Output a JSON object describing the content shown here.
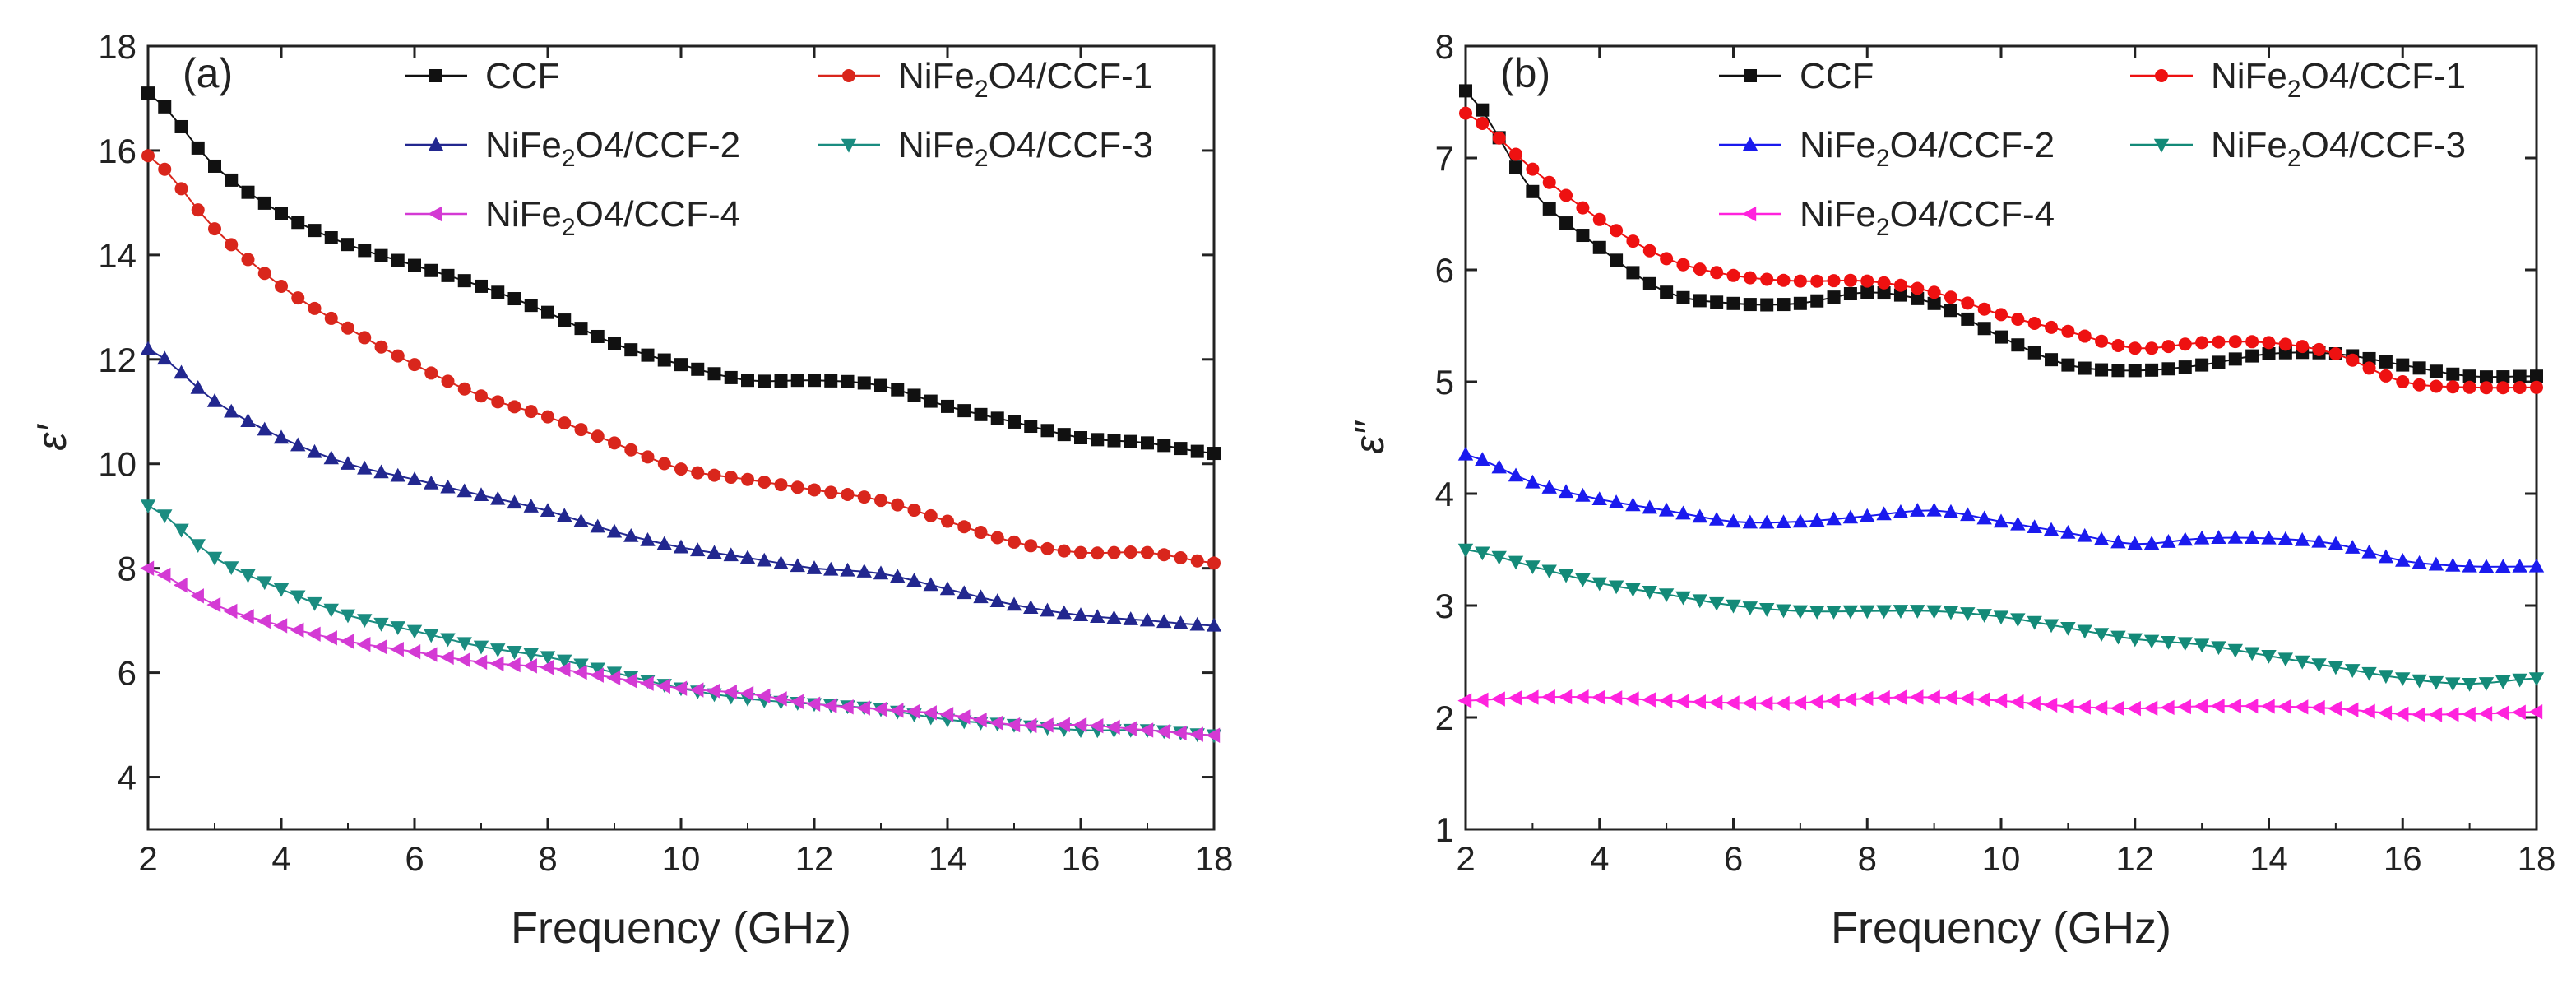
{
  "chart_data": [
    {
      "type": "line",
      "panel_label": "(a)",
      "xlabel": "Frequency (GHz)",
      "ylabel": "ε′",
      "xlim": [
        2,
        18
      ],
      "ylim": [
        3,
        18
      ],
      "xticks": [
        2,
        4,
        6,
        8,
        10,
        12,
        14,
        16,
        18
      ],
      "yticks": [
        4,
        6,
        8,
        10,
        12,
        14,
        16,
        18
      ],
      "legend_position": "top",
      "series": [
        {
          "name": "CCF",
          "label_main": "CCF",
          "label_sub": "",
          "label_tail": "",
          "color": "#111111",
          "marker": "square",
          "x": [
            2,
            3,
            4,
            5,
            6,
            7,
            8,
            9,
            10,
            11,
            12,
            13,
            14,
            15,
            16,
            17,
            18
          ],
          "y": [
            17.1,
            15.7,
            14.8,
            14.2,
            13.8,
            13.4,
            12.9,
            12.3,
            11.9,
            11.6,
            11.6,
            11.5,
            11.1,
            10.8,
            10.5,
            10.4,
            10.2
          ]
        },
        {
          "name": "NiFe2O4/CCF-1",
          "label_main": "NiFe",
          "label_sub": "2",
          "label_tail": "O4/CCF-1",
          "color": "#d9261c",
          "marker": "circle",
          "x": [
            2,
            3,
            4,
            5,
            6,
            7,
            8,
            9,
            10,
            11,
            12,
            13,
            14,
            15,
            16,
            17,
            18
          ],
          "y": [
            15.9,
            14.5,
            13.4,
            12.6,
            11.9,
            11.3,
            10.9,
            10.4,
            9.9,
            9.7,
            9.5,
            9.3,
            8.9,
            8.5,
            8.3,
            8.3,
            8.1
          ]
        },
        {
          "name": "NiFe2O4/CCF-2",
          "label_main": "NiFe",
          "label_sub": "2",
          "label_tail": "O4/CCF-2",
          "color": "#22278f",
          "marker": "triangle-up",
          "x": [
            2,
            3,
            4,
            5,
            6,
            7,
            8,
            9,
            10,
            11,
            12,
            13,
            14,
            15,
            16,
            17,
            18
          ],
          "y": [
            12.2,
            11.2,
            10.5,
            10.0,
            9.7,
            9.4,
            9.1,
            8.7,
            8.4,
            8.2,
            8.0,
            7.9,
            7.6,
            7.3,
            7.1,
            7.0,
            6.9
          ]
        },
        {
          "name": "NiFe2O4/CCF-3",
          "label_main": "NiFe",
          "label_sub": "2",
          "label_tail": "O4/CCF-3",
          "color": "#1a8c80",
          "marker": "triangle-down",
          "x": [
            2,
            3,
            4,
            5,
            6,
            7,
            8,
            9,
            10,
            11,
            12,
            13,
            14,
            15,
            16,
            17,
            18
          ],
          "y": [
            9.2,
            8.2,
            7.6,
            7.1,
            6.8,
            6.5,
            6.3,
            6.0,
            5.7,
            5.5,
            5.4,
            5.3,
            5.1,
            5.0,
            4.9,
            4.9,
            4.8
          ]
        },
        {
          "name": "NiFe2O4/CCF-4",
          "label_main": "NiFe",
          "label_sub": "2",
          "label_tail": "O4/CCF-4",
          "color": "#d43ad4",
          "marker": "triangle-left",
          "x": [
            2,
            3,
            4,
            5,
            6,
            7,
            8,
            9,
            10,
            11,
            12,
            13,
            14,
            15,
            16,
            17,
            18
          ],
          "y": [
            8.0,
            7.3,
            6.9,
            6.6,
            6.4,
            6.2,
            6.1,
            5.9,
            5.7,
            5.6,
            5.4,
            5.3,
            5.2,
            5.0,
            5.0,
            4.9,
            4.8
          ]
        }
      ]
    },
    {
      "type": "line",
      "panel_label": "(b)",
      "xlabel": "Frequency (GHz)",
      "ylabel": "ε″",
      "xlim": [
        2,
        18
      ],
      "ylim": [
        1,
        8
      ],
      "xticks": [
        2,
        4,
        6,
        8,
        10,
        12,
        14,
        16,
        18
      ],
      "yticks": [
        1,
        2,
        3,
        4,
        5,
        6,
        7,
        8
      ],
      "legend_position": "top",
      "series": [
        {
          "name": "CCF",
          "label_main": "CCF",
          "label_sub": "",
          "label_tail": "",
          "color": "#111111",
          "marker": "square",
          "x": [
            2,
            3,
            4,
            5,
            6,
            7,
            8,
            9,
            10,
            11,
            12,
            13,
            14,
            15,
            16,
            17,
            18
          ],
          "y": [
            7.6,
            6.7,
            6.2,
            5.8,
            5.7,
            5.7,
            5.8,
            5.7,
            5.4,
            5.15,
            5.1,
            5.15,
            5.25,
            5.25,
            5.15,
            5.05,
            5.05
          ]
        },
        {
          "name": "NiFe2O4/CCF-1",
          "label_main": "NiFe",
          "label_sub": "2",
          "label_tail": "O4/CCF-1",
          "color": "#ee1111",
          "marker": "circle",
          "x": [
            2,
            3,
            4,
            5,
            6,
            7,
            8,
            9,
            10,
            11,
            12,
            13,
            14,
            15,
            16,
            17,
            18
          ],
          "y": [
            7.4,
            6.9,
            6.45,
            6.1,
            5.95,
            5.9,
            5.9,
            5.8,
            5.6,
            5.45,
            5.3,
            5.35,
            5.35,
            5.25,
            5.0,
            4.95,
            4.95
          ]
        },
        {
          "name": "NiFe2O4/CCF-2",
          "label_main": "NiFe",
          "label_sub": "2",
          "label_tail": "O4/CCF-2",
          "color": "#1a1aee",
          "marker": "triangle-up",
          "x": [
            2,
            3,
            4,
            5,
            6,
            7,
            8,
            9,
            10,
            11,
            12,
            13,
            14,
            15,
            16,
            17,
            18
          ],
          "y": [
            4.35,
            4.1,
            3.95,
            3.85,
            3.75,
            3.75,
            3.8,
            3.85,
            3.75,
            3.65,
            3.55,
            3.6,
            3.6,
            3.55,
            3.4,
            3.35,
            3.35
          ]
        },
        {
          "name": "NiFe2O4/CCF-3",
          "label_main": "NiFe",
          "label_sub": "2",
          "label_tail": "O4/CCF-3",
          "color": "#138a78",
          "marker": "triangle-down",
          "x": [
            2,
            3,
            4,
            5,
            6,
            7,
            8,
            9,
            10,
            11,
            12,
            13,
            14,
            15,
            16,
            17,
            18
          ],
          "y": [
            3.5,
            3.35,
            3.2,
            3.1,
            3.0,
            2.95,
            2.95,
            2.95,
            2.9,
            2.8,
            2.7,
            2.65,
            2.55,
            2.45,
            2.35,
            2.3,
            2.35
          ]
        },
        {
          "name": "NiFe2O4/CCF-4",
          "label_main": "NiFe",
          "label_sub": "2",
          "label_tail": "O4/CCF-4",
          "color": "#ff22dd",
          "marker": "triangle-left",
          "x": [
            2,
            3,
            4,
            5,
            6,
            7,
            8,
            9,
            10,
            11,
            12,
            13,
            14,
            15,
            16,
            17,
            18
          ],
          "y": [
            2.15,
            2.18,
            2.18,
            2.15,
            2.13,
            2.13,
            2.17,
            2.18,
            2.15,
            2.1,
            2.08,
            2.1,
            2.1,
            2.08,
            2.03,
            2.03,
            2.05
          ]
        }
      ]
    }
  ]
}
